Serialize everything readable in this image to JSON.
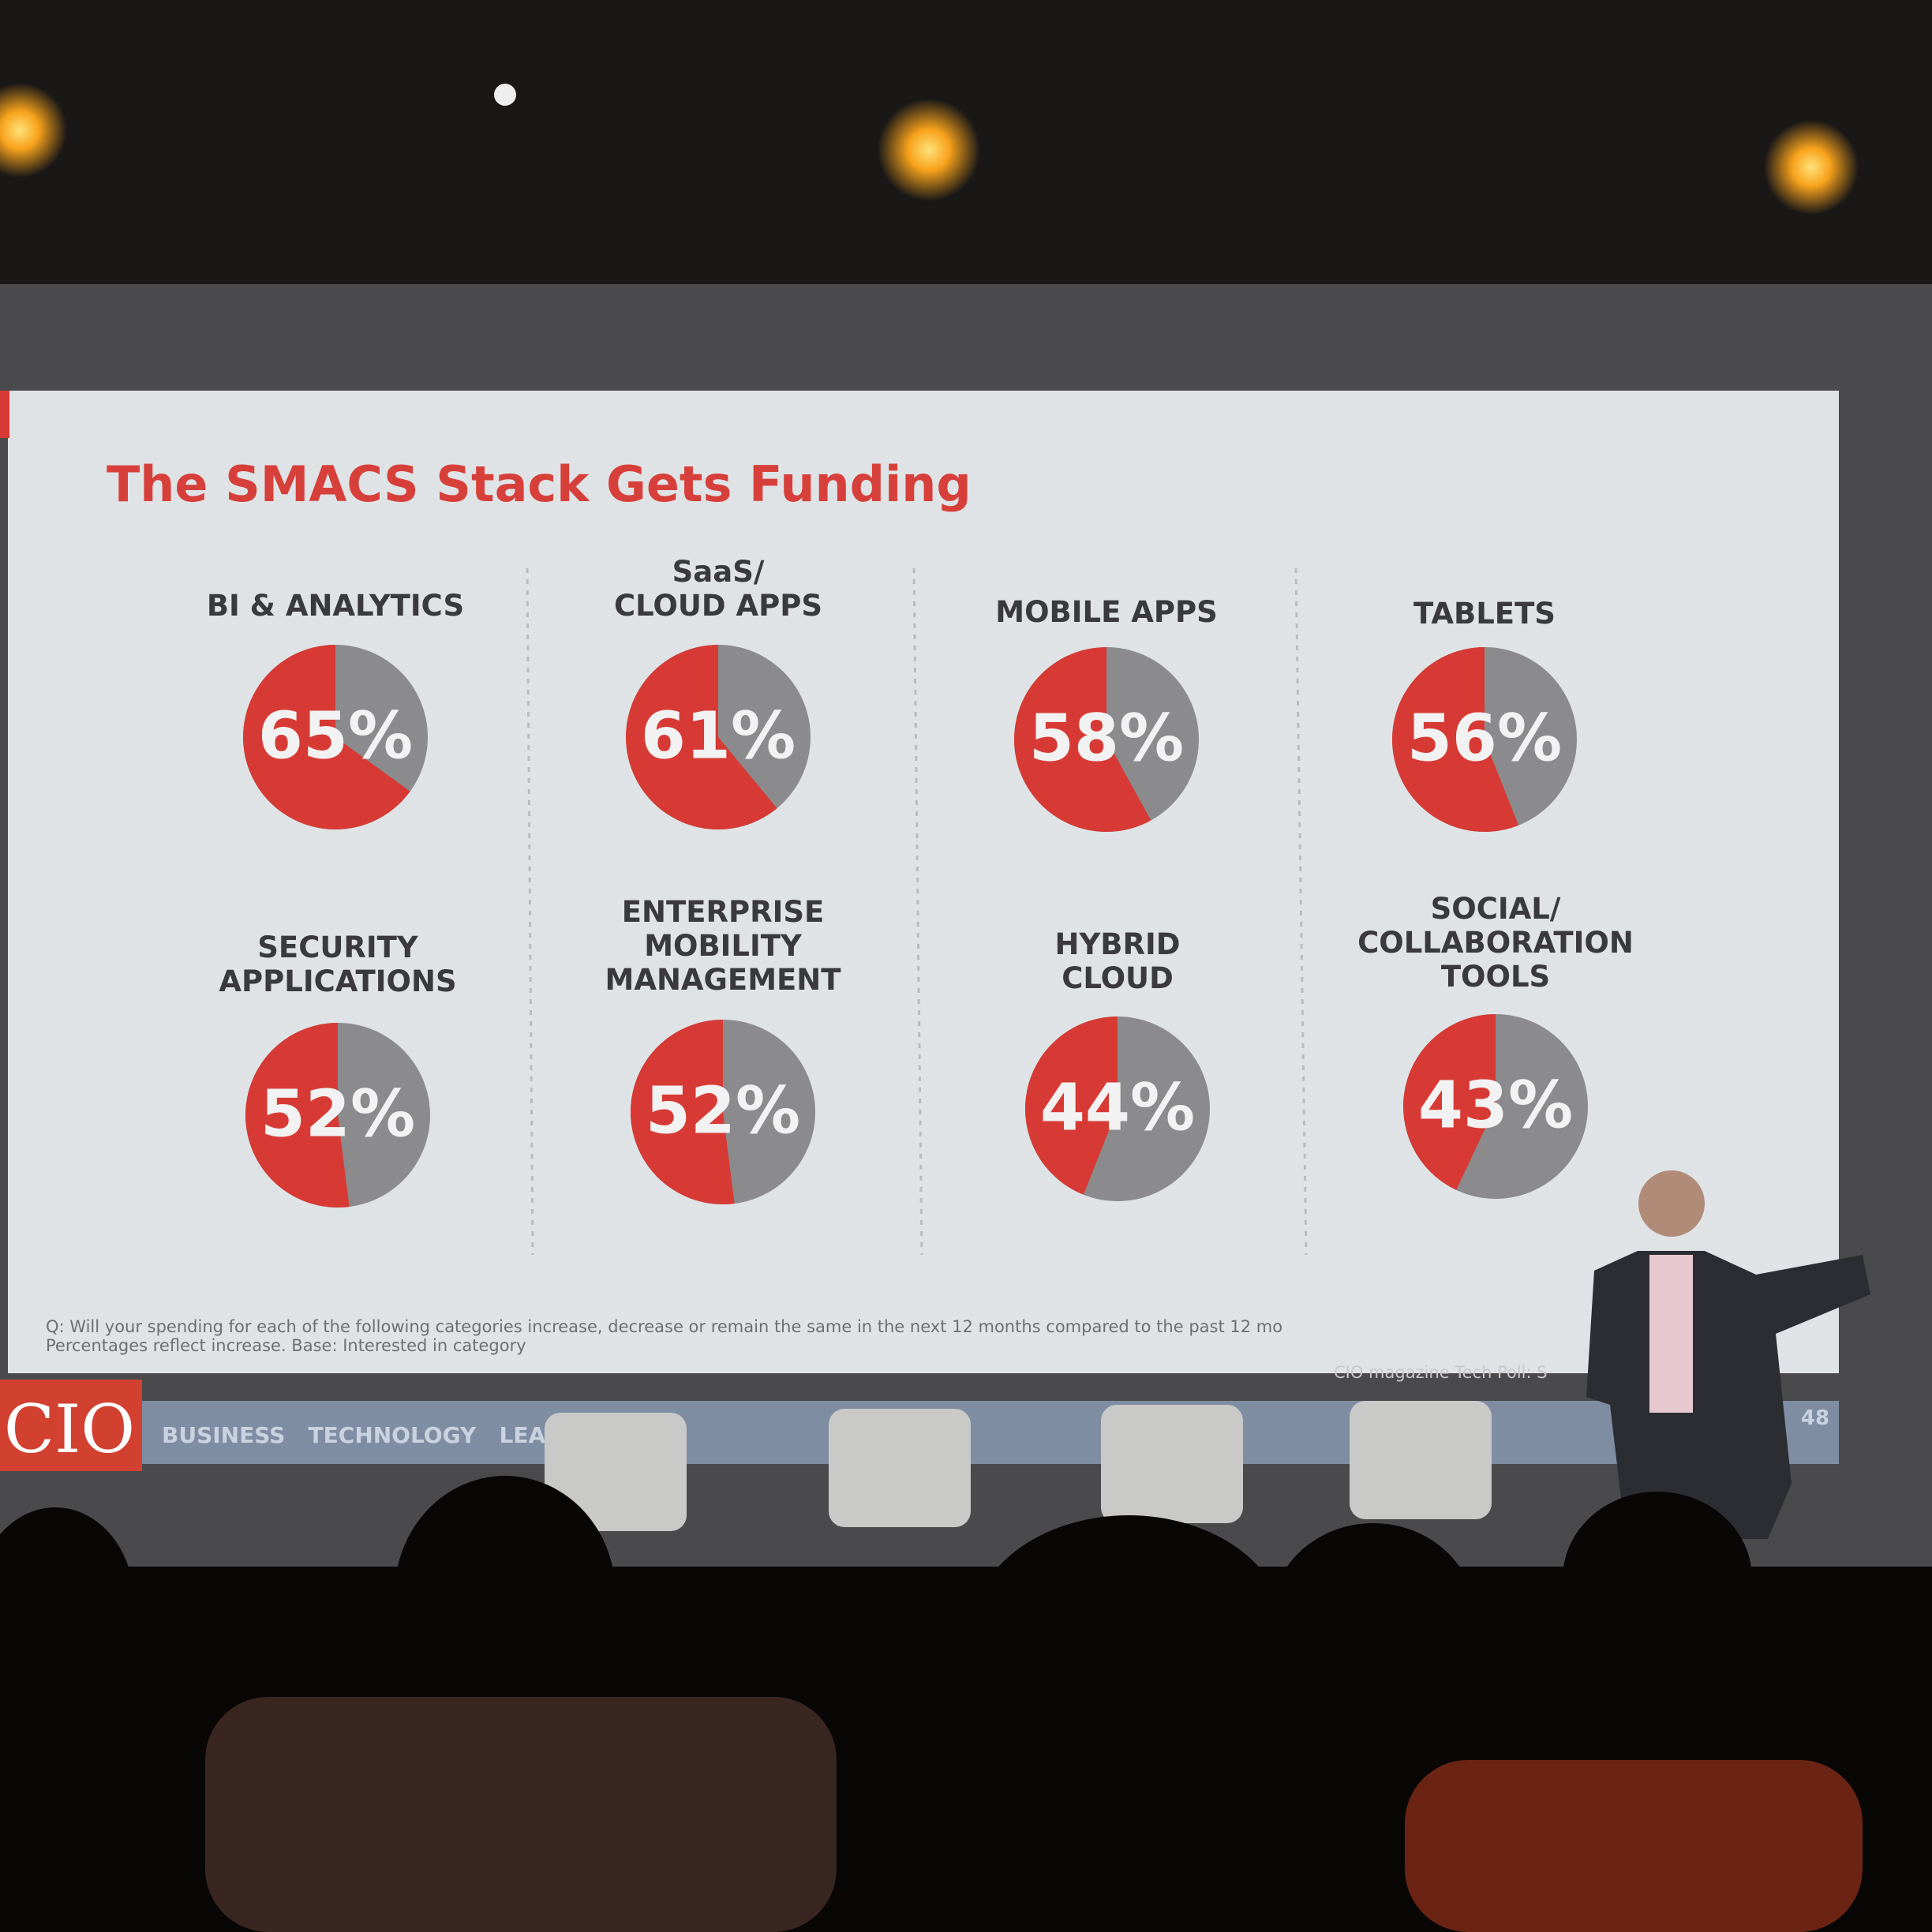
{
  "slide": {
    "title": "The SMACS Stack Gets Funding",
    "footnote": [
      "Q: Will your spending for each of the following categories increase, decrease or remain the same in the next 12 months compared to the past 12 mo",
      "Percentages reflect increase. Base: Interested in category"
    ],
    "source": "CIO magazine Tech Poll: S",
    "logo": "CIO",
    "tagline": "BUSINESS   TECHNOLOGY   LEADERSHIP",
    "page": "48"
  },
  "chart_data": [
    {
      "type": "pie",
      "title": [
        "BI & ANALYTICS"
      ],
      "values": [
        65
      ],
      "value_labels": [
        "65%"
      ],
      "color": "#d73a34",
      "rest_color": "#8b8b8d"
    },
    {
      "type": "pie",
      "title": [
        "SaaS/",
        "CLOUD APPS"
      ],
      "values": [
        61
      ],
      "value_labels": [
        "61%"
      ],
      "color": "#d73a34",
      "rest_color": "#8b8b8d"
    },
    {
      "type": "pie",
      "title": [
        "MOBILE APPS"
      ],
      "values": [
        58
      ],
      "value_labels": [
        "58%"
      ],
      "color": "#d73a34",
      "rest_color": "#8b8b8d"
    },
    {
      "type": "pie",
      "title": [
        "TABLETS"
      ],
      "values": [
        56
      ],
      "value_labels": [
        "56%"
      ],
      "color": "#d73a34",
      "rest_color": "#8b8b8d"
    },
    {
      "type": "pie",
      "title": [
        "SECURITY",
        "APPLICATIONS"
      ],
      "values": [
        52
      ],
      "value_labels": [
        "52%"
      ],
      "color": "#d73a34",
      "rest_color": "#8b8b8d"
    },
    {
      "type": "pie",
      "title": [
        "ENTERPRISE",
        "MOBILITY",
        "MANAGEMENT"
      ],
      "values": [
        52
      ],
      "value_labels": [
        "52%"
      ],
      "color": "#d73a34",
      "rest_color": "#8b8b8d"
    },
    {
      "type": "pie",
      "title": [
        "HYBRID",
        "CLOUD"
      ],
      "values": [
        44
      ],
      "value_labels": [
        "44%"
      ],
      "color": "#d73a34",
      "rest_color": "#8b8b8d"
    },
    {
      "type": "pie",
      "title": [
        "SOCIAL/",
        "COLLABORATION",
        "TOOLS"
      ],
      "values": [
        43
      ],
      "value_labels": [
        "43%"
      ],
      "color": "#d73a34",
      "rest_color": "#8b8b8d"
    }
  ]
}
